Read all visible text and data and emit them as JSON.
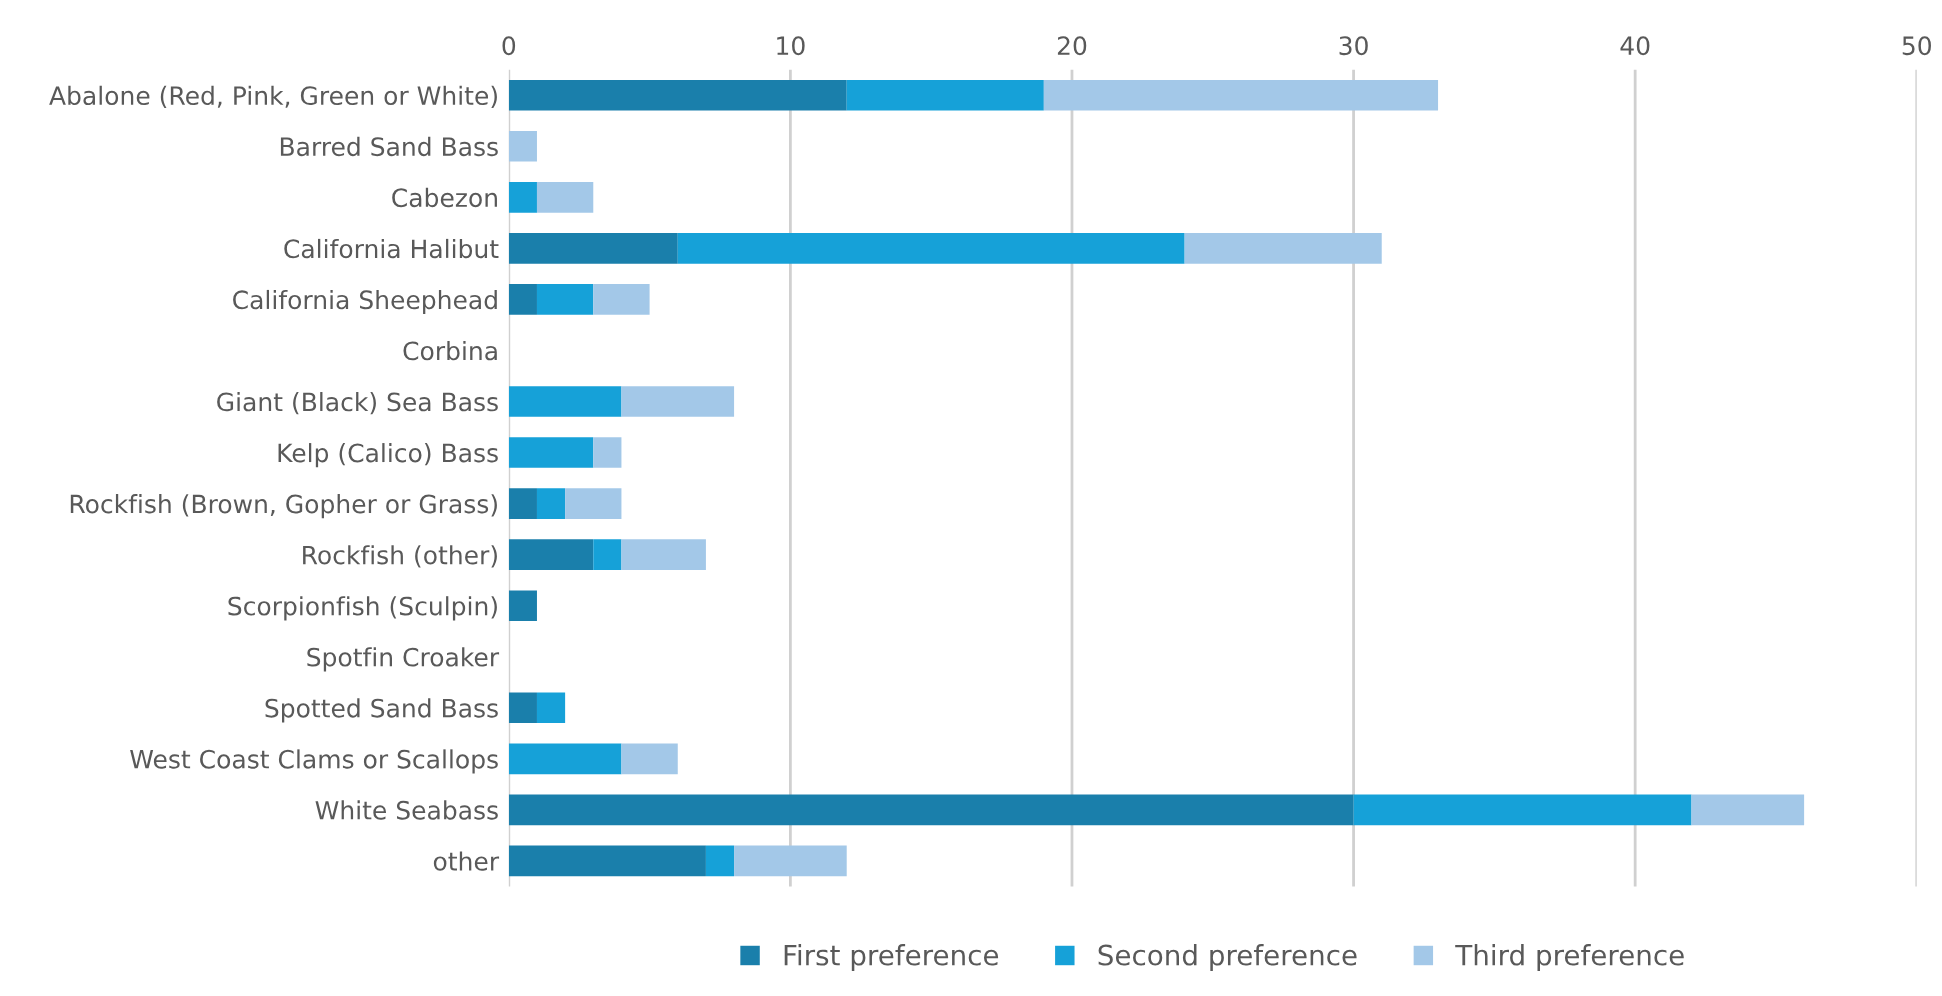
{
  "chart_data": {
    "type": "bar",
    "orientation": "horizontal",
    "stacked": true,
    "categories": [
      "Abalone (Red, Pink, Green or White)",
      "Barred Sand Bass",
      "Cabezon",
      "California Halibut",
      "California Sheephead",
      "Corbina",
      "Giant (Black) Sea Bass",
      "Kelp (Calico) Bass",
      "Rockfish (Brown, Gopher or Grass)",
      "Rockfish (other)",
      "Scorpionfish (Sculpin)",
      "Spotfin Croaker",
      "Spotted Sand Bass",
      "West Coast Clams or Scallops",
      "White Seabass",
      "other"
    ],
    "series": [
      {
        "name": "First preference",
        "color": "#1a7fab",
        "values": [
          12,
          0,
          0,
          6,
          1,
          0,
          0,
          0,
          1,
          3,
          1,
          0,
          1,
          0,
          30,
          7
        ]
      },
      {
        "name": "Second preference",
        "color": "#16a1d8",
        "values": [
          7,
          0,
          1,
          18,
          2,
          0,
          4,
          3,
          1,
          1,
          0,
          0,
          1,
          4,
          12,
          1
        ]
      },
      {
        "name": "Third preference",
        "color": "#a3c8e8",
        "values": [
          14,
          1,
          2,
          7,
          2,
          0,
          4,
          1,
          2,
          3,
          0,
          0,
          0,
          2,
          4,
          4
        ]
      }
    ],
    "xlim": [
      0,
      50
    ],
    "xticks": [
      0,
      10,
      20,
      30,
      40,
      50
    ],
    "grid": "x",
    "legend": "bottom"
  }
}
